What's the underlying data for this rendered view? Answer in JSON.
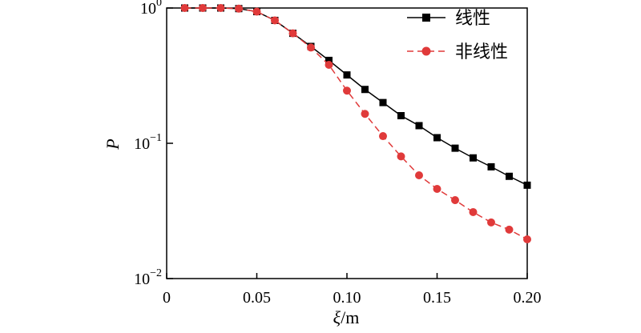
{
  "chart_data": {
    "type": "line",
    "xlabel_symbol": "ξ",
    "xlabel_unit": "/m",
    "ylabel": "P",
    "xlim": [
      0,
      0.2
    ],
    "ylim": [
      0.01,
      1
    ],
    "yscale": "log",
    "x_ticks": [
      "0",
      "0.05",
      "0.10",
      "0.15",
      "0.20"
    ],
    "y_ticks": [
      {
        "value": 1,
        "base": "10",
        "exp": "0"
      },
      {
        "value": 0.1,
        "base": "10",
        "exp": "−1"
      },
      {
        "value": 0.01,
        "base": "10",
        "exp": "−2"
      }
    ],
    "legend_position": "top-right",
    "x": [
      0.01,
      0.02,
      0.03,
      0.04,
      0.05,
      0.06,
      0.07,
      0.08,
      0.09,
      0.1,
      0.11,
      0.12,
      0.13,
      0.14,
      0.15,
      0.16,
      0.17,
      0.18,
      0.19,
      0.2
    ],
    "series": [
      {
        "name": "线性",
        "color": "#000000",
        "marker": "square",
        "line": "solid",
        "values": [
          1.0,
          1.0,
          1.0,
          0.99,
          0.94,
          0.81,
          0.65,
          0.52,
          0.41,
          0.32,
          0.25,
          0.2,
          0.16,
          0.135,
          0.11,
          0.092,
          0.078,
          0.067,
          0.057,
          0.049
        ]
      },
      {
        "name": "非线性",
        "color": "#e03a3a",
        "marker": "circle",
        "line": "dashed",
        "values": [
          1.0,
          1.0,
          1.0,
          0.99,
          0.94,
          0.81,
          0.65,
          0.51,
          0.38,
          0.245,
          0.165,
          0.113,
          0.08,
          0.058,
          0.046,
          0.038,
          0.031,
          0.026,
          0.023,
          0.0195
        ]
      }
    ]
  }
}
